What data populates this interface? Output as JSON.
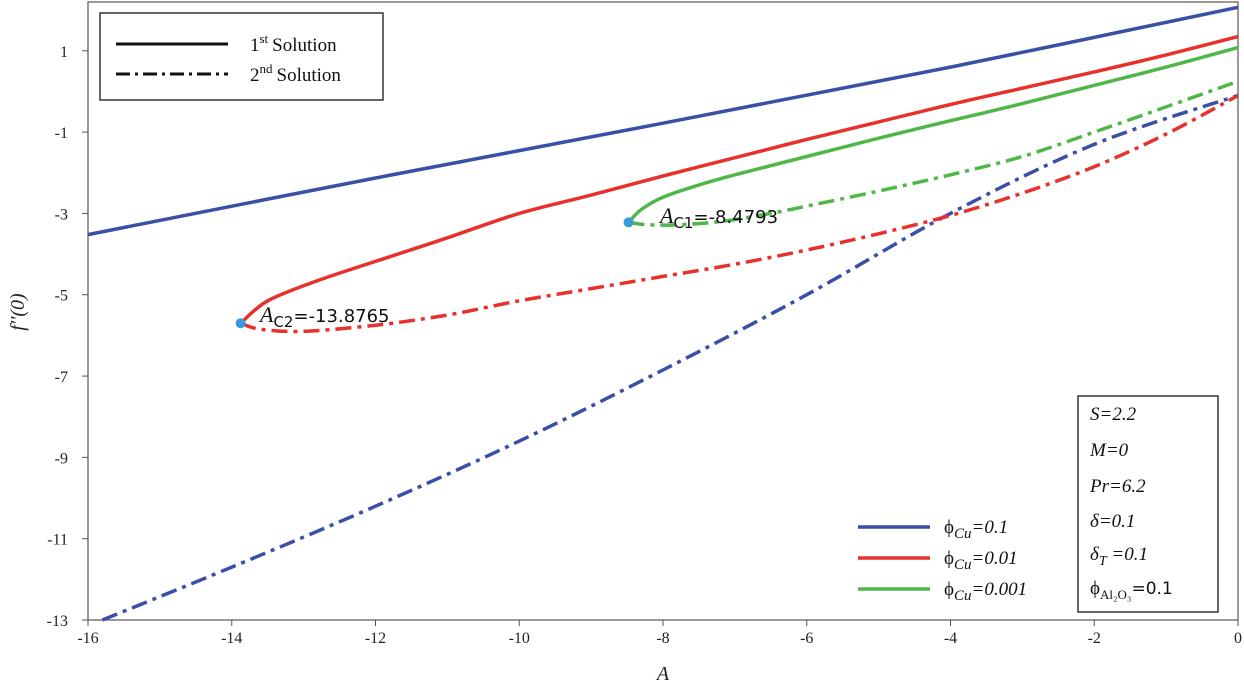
{
  "chart_data": {
    "type": "line",
    "xlabel": "A",
    "ylabel": "f''(0)",
    "xlim": [
      -16,
      0
    ],
    "ylim": [
      -13,
      2.2
    ],
    "xticks": [
      "-16",
      "-14",
      "-12",
      "-10",
      "-8",
      "-6",
      "-4",
      "-2",
      "0"
    ],
    "yticks": [
      "1",
      "-1",
      "-3",
      "-5",
      "-7",
      "-9",
      "-11",
      "-13"
    ],
    "style_legend": {
      "first": {
        "label": "Solution",
        "sup": "st",
        "num": "1"
      },
      "second": {
        "label": "Solution",
        "sup": "nd",
        "num": "2"
      }
    },
    "color_legend": [
      {
        "prefix": "ϕ",
        "sub": "Cu",
        "value": "=0.1",
        "color": "#3a4fa6"
      },
      {
        "prefix": "ϕ",
        "sub": "Cu",
        "value": "=0.01",
        "color": "#e8302c"
      },
      {
        "prefix": "ϕ",
        "sub": "Cu",
        "value": "=0.001",
        "color": "#4fb748"
      }
    ],
    "params": {
      "S": "S=2.2",
      "M": "M=0",
      "Pr": "Pr=6.2",
      "delta": "δ=0.1",
      "deltaT_main": "δ",
      "deltaT_sub": "T",
      "deltaT_val": " =0.1",
      "phi_main": "ϕ",
      "phi_sub": "Al₂O₃",
      "phi_val": "=0.1"
    },
    "annotations": [
      {
        "label": "A",
        "sub": "C1",
        "value": "=-8.4793",
        "x": -8.4793,
        "y": -3.22
      },
      {
        "label": "A",
        "sub": "C2",
        "value": "=-13.8765",
        "x": -13.8765,
        "y": -5.7
      }
    ],
    "series": [
      {
        "name": "ϕCu=0.1 1st Solution",
        "color": "#3a4fa6",
        "style": "solid",
        "points": [
          [
            -16,
            -3.52
          ],
          [
            -12,
            -2.13
          ],
          [
            -8,
            -0.78
          ],
          [
            -4,
            0.6
          ],
          [
            0,
            2.07
          ]
        ]
      },
      {
        "name": "ϕCu=0.1 2nd Solution",
        "color": "#3a4fa6",
        "style": "dashdot",
        "points": [
          [
            -15.8,
            -13.0
          ],
          [
            -14,
            -11.7
          ],
          [
            -12,
            -10.2
          ],
          [
            -10,
            -8.6
          ],
          [
            -8,
            -6.85
          ],
          [
            -6,
            -5.0
          ],
          [
            -4,
            -3.0
          ],
          [
            -2,
            -1.3
          ],
          [
            0,
            -0.1
          ]
        ]
      },
      {
        "name": "ϕCu=0.01 1st Solution",
        "color": "#e8302c",
        "style": "solid",
        "points": [
          [
            -13.8765,
            -5.7
          ],
          [
            -13.5,
            -5.15
          ],
          [
            -12.8,
            -4.65
          ],
          [
            -12,
            -4.18
          ],
          [
            -11,
            -3.6
          ],
          [
            -10,
            -3.0
          ],
          [
            -9,
            -2.55
          ],
          [
            -8,
            -2.08
          ],
          [
            -7,
            -1.63
          ],
          [
            -6,
            -1.18
          ],
          [
            -5,
            -0.75
          ],
          [
            -4,
            -0.32
          ],
          [
            -3,
            0.08
          ],
          [
            -2,
            0.48
          ],
          [
            -1,
            0.9
          ],
          [
            0,
            1.35
          ]
        ]
      },
      {
        "name": "ϕCu=0.01 2nd Solution",
        "color": "#e8302c",
        "style": "dashdot",
        "points": [
          [
            -13.8765,
            -5.7
          ],
          [
            -13.6,
            -5.85
          ],
          [
            -13.0,
            -5.9
          ],
          [
            -12.0,
            -5.75
          ],
          [
            -11,
            -5.5
          ],
          [
            -10,
            -5.15
          ],
          [
            -9,
            -4.85
          ],
          [
            -8,
            -4.55
          ],
          [
            -7,
            -4.25
          ],
          [
            -6,
            -3.9
          ],
          [
            -5,
            -3.5
          ],
          [
            -4,
            -3.05
          ],
          [
            -3,
            -2.5
          ],
          [
            -2,
            -1.85
          ],
          [
            -1,
            -1.05
          ],
          [
            0,
            -0.1
          ]
        ]
      },
      {
        "name": "ϕCu=0.001 1st Solution",
        "color": "#4fb748",
        "style": "solid",
        "points": [
          [
            -8.4793,
            -3.22
          ],
          [
            -8.3,
            -2.9
          ],
          [
            -8.0,
            -2.6
          ],
          [
            -7.5,
            -2.3
          ],
          [
            -7,
            -2.05
          ],
          [
            -6,
            -1.6
          ],
          [
            -5,
            -1.15
          ],
          [
            -4,
            -0.72
          ],
          [
            -3,
            -0.3
          ],
          [
            -2,
            0.15
          ],
          [
            -1,
            0.6
          ],
          [
            0,
            1.08
          ]
        ]
      },
      {
        "name": "ϕCu=0.001 2nd Solution",
        "color": "#4fb748",
        "style": "dashdot",
        "points": [
          [
            -8.4793,
            -3.22
          ],
          [
            -8.2,
            -3.28
          ],
          [
            -7.8,
            -3.28
          ],
          [
            -7.2,
            -3.2
          ],
          [
            -6.5,
            -3.0
          ],
          [
            -6,
            -2.82
          ],
          [
            -5,
            -2.45
          ],
          [
            -4,
            -2.05
          ],
          [
            -3,
            -1.6
          ],
          [
            -2,
            -1.0
          ],
          [
            -1,
            -0.38
          ],
          [
            0,
            0.25
          ]
        ]
      }
    ]
  }
}
